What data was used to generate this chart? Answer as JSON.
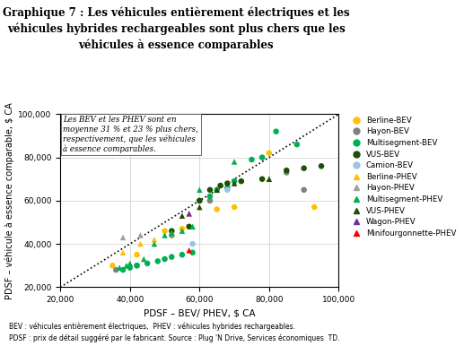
{
  "title_line1": "Graphique 7 : Les véhicules entièrement électriques et les",
  "title_line2": "véhicules hybrides rechargeables sont plus chers que les",
  "title_line3": "véhicules à essence comparables",
  "xlabel": "PDSF – BEV/ PHEV, $ CA",
  "ylabel": "PDSF – véhicule à essence comparable, $ CA",
  "annotation": "Les BEV et les PHEV sont en\nmoyenne 31 % et 23 % plus chers,\nrespectivement, que les véhicules\nà essence comparables.",
  "footnote1": "BEV : véhicules entièrement électriques,  PHEV : véhicules hybrides rechargeables.",
  "footnote2": "PDSF : prix de détail suggéré par le fabricant. Source : Plug 'N Drive, Services économiques  TD.",
  "xlim": [
    20000,
    100000
  ],
  "ylim": [
    20000,
    100000
  ],
  "xticks": [
    20000,
    40000,
    60000,
    80000,
    100000
  ],
  "yticks": [
    20000,
    40000,
    60000,
    80000,
    100000
  ],
  "tick_labels": [
    "20,000",
    "40,000",
    "60,000",
    "80,000",
    "100,000"
  ],
  "series": [
    {
      "label": "Berline-BEV",
      "color": "#FFC000",
      "marker": "o",
      "x": [
        35000,
        42000,
        50000,
        55000,
        65000,
        70000,
        80000,
        93000
      ],
      "y": [
        30000,
        35000,
        46000,
        47000,
        56000,
        57000,
        82000,
        57000
      ]
    },
    {
      "label": "Hayon-BEV",
      "color": "#808080",
      "marker": "o",
      "x": [
        36000,
        42000,
        52000,
        63000,
        85000,
        90000
      ],
      "y": [
        28000,
        30000,
        44000,
        60000,
        73000,
        65000
      ]
    },
    {
      "label": "Multisegment-BEV",
      "color": "#00B050",
      "marker": "o",
      "x": [
        38000,
        40000,
        42000,
        45000,
        48000,
        50000,
        52000,
        55000,
        58000,
        60000,
        63000,
        65000,
        68000,
        70000,
        75000,
        78000,
        82000,
        88000
      ],
      "y": [
        28000,
        29000,
        30000,
        31000,
        32000,
        33000,
        34000,
        35000,
        36000,
        60000,
        62000,
        65000,
        66000,
        69000,
        79000,
        80000,
        92000,
        86000
      ]
    },
    {
      "label": "VUS-BEV",
      "color": "#1F4E04",
      "marker": "o",
      "x": [
        52000,
        57000,
        60000,
        63000,
        66000,
        68000,
        72000,
        78000,
        85000,
        90000,
        95000
      ],
      "y": [
        46000,
        48000,
        60000,
        65000,
        67000,
        68000,
        69000,
        70000,
        74000,
        75000,
        76000
      ]
    },
    {
      "label": "Camion-BEV",
      "color": "#9DC3E6",
      "marker": "o",
      "x": [
        58000,
        68000
      ],
      "y": [
        40000,
        65000
      ]
    },
    {
      "label": "Berline-PHEV",
      "color": "#FFC000",
      "marker": "^",
      "x": [
        38000,
        43000,
        47000,
        52000,
        57000
      ],
      "y": [
        36000,
        40000,
        42000,
        45000,
        54000
      ]
    },
    {
      "label": "Hayon-PHEV",
      "color": "#A0A0A0",
      "marker": "^",
      "x": [
        38000,
        43000
      ],
      "y": [
        43000,
        44000
      ]
    },
    {
      "label": "Multisegment-PHEV",
      "color": "#00B050",
      "marker": "^",
      "x": [
        37000,
        39000,
        40000,
        44000,
        47000,
        50000,
        52000,
        55000,
        58000,
        60000,
        65000,
        70000
      ],
      "y": [
        29000,
        30000,
        31000,
        33000,
        40000,
        44000,
        45000,
        46000,
        48000,
        65000,
        65000,
        78000
      ]
    },
    {
      "label": "VUS-PHEV",
      "color": "#1F4E04",
      "marker": "^",
      "x": [
        55000,
        60000,
        65000,
        70000,
        80000
      ],
      "y": [
        53000,
        57000,
        65000,
        68000,
        70000
      ]
    },
    {
      "label": "Wagon-PHEV",
      "color": "#7030A0",
      "marker": "^",
      "x": [
        57000
      ],
      "y": [
        54000
      ]
    },
    {
      "label": "Minifourgonnette-PHEV",
      "color": "#FF0000",
      "marker": "^",
      "x": [
        57000
      ],
      "y": [
        37000
      ]
    }
  ]
}
